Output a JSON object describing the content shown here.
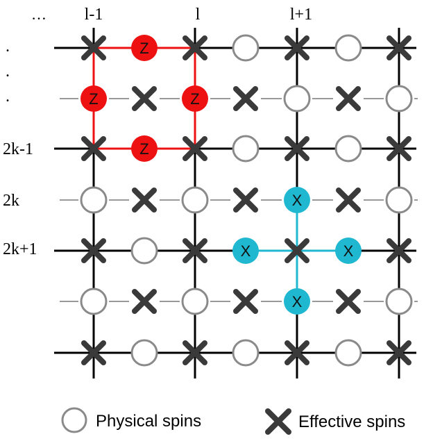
{
  "header": {
    "ellipsis": "…",
    "columns": [
      "l-1",
      "l",
      "l+1"
    ]
  },
  "row_labels": {
    "dots": [
      ".",
      ".",
      "."
    ],
    "rows": [
      "2k-1",
      "2k",
      "2k+1"
    ]
  },
  "plaquette": {
    "label": "Z",
    "color": "#ee1111"
  },
  "star": {
    "label": "X",
    "color": "#1fb8d0"
  },
  "legend": {
    "physical": "Physical spins",
    "effective": "Effective spins"
  },
  "colors": {
    "line": "#000000",
    "cross": "#3a3a3a",
    "physical_ring": "#8a8a8a",
    "dash": "#999999"
  }
}
